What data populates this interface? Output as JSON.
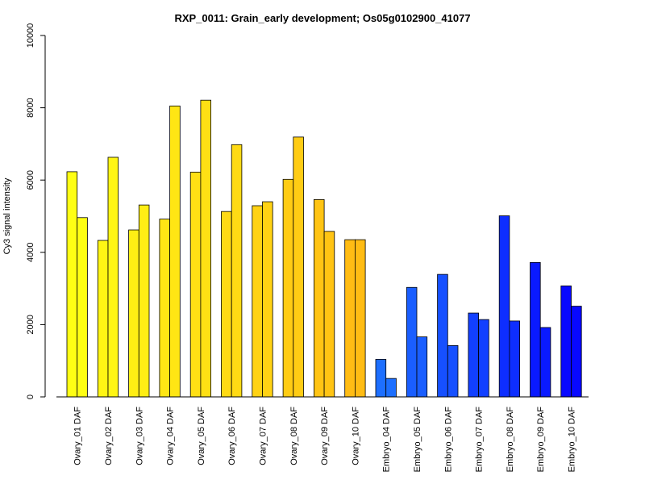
{
  "chart_data": {
    "type": "bar",
    "title": "RXP_0011: Grain_early development; Os05g0102900_41077",
    "xlabel": "",
    "ylabel": "Cy3 signal intensity",
    "ylim": [
      0,
      10000
    ],
    "yticks": [
      0,
      2000,
      4000,
      6000,
      8000,
      10000
    ],
    "grid": false,
    "legend": "none",
    "categories": [
      "Ovary_01 DAF",
      "Ovary_02 DAF",
      "Ovary_03 DAF",
      "Ovary_04 DAF",
      "Ovary_05 DAF",
      "Ovary_06 DAF",
      "Ovary_07 DAF",
      "Ovary_08 DAF",
      "Ovary_09 DAF",
      "Ovary_10 DAF",
      "Embryo_04 DAF",
      "Embryo_05 DAF",
      "Embryo_06 DAF",
      "Embryo_07 DAF",
      "Embryo_08 DAF",
      "Embryo_09 DAF",
      "Embryo_10 DAF"
    ],
    "series": [
      {
        "values": [
          6230,
          4330,
          4620,
          4920,
          6220,
          5130,
          5290,
          6020,
          5460,
          4350,
          1040,
          3030,
          3390,
          2320,
          5010,
          3720,
          3070
        ]
      },
      {
        "values": [
          4960,
          6630,
          5310,
          8050,
          8210,
          6980,
          5400,
          7190,
          4580,
          4350,
          510,
          1660,
          1420,
          2140,
          2100,
          1920,
          2510
        ]
      }
    ],
    "colors": [
      "#FFFF14",
      "#FFF614",
      "#FFEE14",
      "#FFE614",
      "#FFE014",
      "#FFDA14",
      "#FFD214",
      "#FFCC14",
      "#FFC414",
      "#FFBC14",
      "#1D6FFF",
      "#1A5EFF",
      "#1650FF",
      "#1240FF",
      "#0E2EFF",
      "#0A1AFF",
      "#0808FF"
    ]
  }
}
